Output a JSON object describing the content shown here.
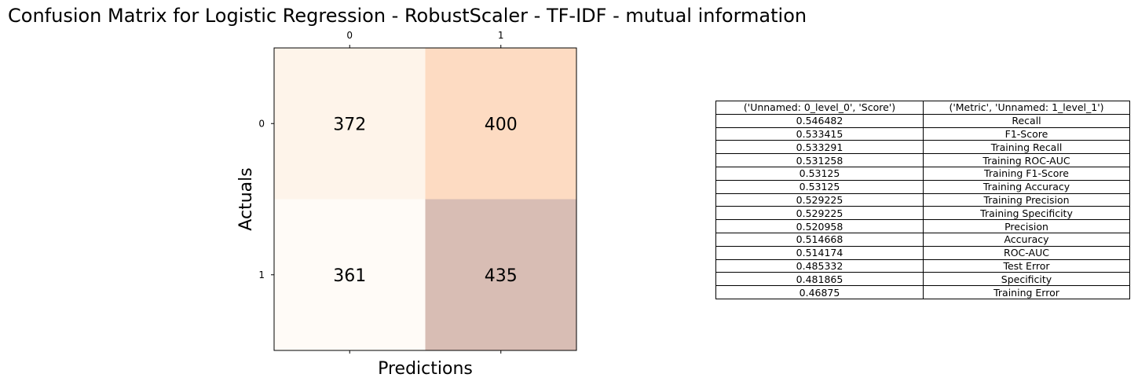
{
  "title": "Confusion Matrix for Logistic Regression - RobustScaler - TF-IDF - mutual information",
  "chart_data": [
    {
      "type": "heatmap",
      "xlabel": "Predictions",
      "ylabel": "Actuals",
      "x_ticks": [
        "0",
        "1"
      ],
      "y_ticks": [
        "0",
        "1"
      ],
      "matrix": [
        [
          372,
          400
        ],
        [
          361,
          435
        ]
      ],
      "cell_colors": [
        [
          "#fef4ea",
          "#fddbc2"
        ],
        [
          "#fffbf7",
          "#d8bdb4"
        ]
      ],
      "x_tick_position": "top"
    },
    {
      "type": "table",
      "columns": [
        "('Unnamed: 0_level_0', 'Score')",
        "('Metric', 'Unnamed: 1_level_1')"
      ],
      "rows": [
        [
          "0.546482",
          "Recall"
        ],
        [
          "0.533415",
          "F1-Score"
        ],
        [
          "0.533291",
          "Training Recall"
        ],
        [
          "0.531258",
          "Training ROC-AUC"
        ],
        [
          "0.53125",
          "Training F1-Score"
        ],
        [
          "0.53125",
          "Training Accuracy"
        ],
        [
          "0.529225",
          "Training Precision"
        ],
        [
          "0.529225",
          "Training Specificity"
        ],
        [
          "0.520958",
          "Precision"
        ],
        [
          "0.514668",
          "Accuracy"
        ],
        [
          "0.514174",
          "ROC-AUC"
        ],
        [
          "0.485332",
          "Test Error"
        ],
        [
          "0.481865",
          "Specificity"
        ],
        [
          "0.46875",
          "Training Error"
        ]
      ]
    }
  ]
}
